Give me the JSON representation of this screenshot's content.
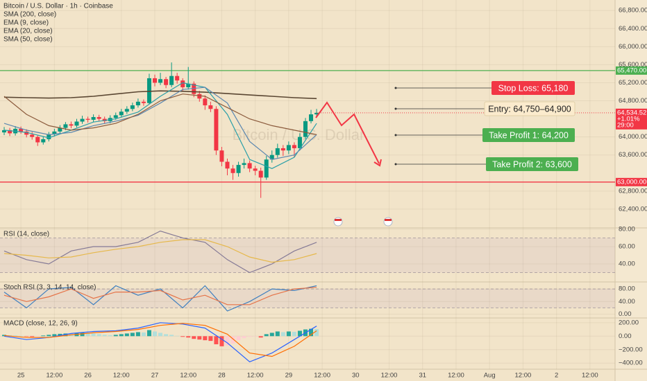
{
  "chart_data": [
    {
      "type": "candlestick",
      "title": "Bitcoin / U.S. Dollar · 1h · Coinbase",
      "watermark": "Bitcoin / U.S. Dollar",
      "x": [
        -6,
        -4,
        -2,
        0,
        2,
        4,
        6,
        8,
        10,
        12,
        14,
        16,
        18,
        20,
        22,
        24,
        26,
        28,
        30,
        32,
        34,
        36,
        38,
        40,
        42,
        44,
        46,
        48,
        50,
        52,
        54,
        56,
        58,
        60,
        62,
        64,
        66,
        68,
        70,
        72,
        74,
        76,
        78,
        80,
        82,
        84,
        86,
        88,
        90,
        92,
        94,
        96,
        98,
        100,
        102,
        104,
        106
      ],
      "open": [
        64100,
        64150,
        64080,
        64180,
        64120,
        64050,
        64000,
        63880,
        63950,
        64060,
        64120,
        64200,
        64280,
        64250,
        64340,
        64400,
        64380,
        64440,
        64400,
        64350,
        64420,
        64480,
        64560,
        64620,
        64700,
        64780,
        64750,
        65300,
        65200,
        65280,
        65150,
        65350,
        65250,
        65100,
        65180,
        64950,
        64850,
        64700,
        64620,
        63700,
        63450,
        63300,
        63200,
        63380,
        63420,
        63300,
        63250,
        63100,
        63500,
        63600,
        63750,
        63700,
        63820,
        63750,
        64000,
        64350,
        64500
      ],
      "high": [
        64220,
        64200,
        64240,
        64230,
        64170,
        64110,
        64040,
        64010,
        64110,
        64180,
        64260,
        64330,
        64340,
        64400,
        64470,
        64450,
        64500,
        64490,
        64450,
        64480,
        64540,
        64620,
        64680,
        64760,
        64850,
        64830,
        65400,
        65380,
        65420,
        65330,
        65650,
        65420,
        65300,
        65550,
        65230,
        65020,
        64920,
        64780,
        64680,
        63780,
        63520,
        63380,
        63450,
        63520,
        63480,
        63360,
        63320,
        63580,
        63700,
        63850,
        63820,
        63900,
        63880,
        64080,
        64420,
        64600,
        64620
      ],
      "low": [
        64040,
        64020,
        64030,
        64070,
        63990,
        63940,
        63800,
        63830,
        63900,
        64010,
        64080,
        64150,
        64190,
        64210,
        64290,
        64320,
        64330,
        64350,
        64290,
        64300,
        64380,
        64430,
        64510,
        64570,
        64650,
        64690,
        64720,
        65120,
        65150,
        65080,
        65100,
        65180,
        65020,
        65050,
        64880,
        64780,
        64600,
        64550,
        63600,
        63350,
        63150,
        63050,
        63120,
        63300,
        63220,
        63150,
        62650,
        63050,
        63430,
        63540,
        63580,
        63620,
        63550,
        63700,
        63950,
        64300,
        64450
      ],
      "close": [
        64150,
        64080,
        64180,
        64120,
        64050,
        64000,
        63880,
        63950,
        64060,
        64120,
        64200,
        64280,
        64250,
        64340,
        64400,
        64380,
        64440,
        64400,
        64350,
        64420,
        64480,
        64560,
        64620,
        64700,
        64780,
        64750,
        65300,
        65200,
        65280,
        65150,
        65350,
        65250,
        65100,
        65180,
        64950,
        64850,
        64700,
        64620,
        63700,
        63450,
        63300,
        63200,
        63380,
        63420,
        63300,
        63250,
        63100,
        63500,
        63600,
        63750,
        63700,
        63820,
        63750,
        64000,
        64350,
        64500,
        64534.52
      ],
      "up_color": "#089981",
      "down_color": "#f23645",
      "series": [
        {
          "name": "SMA (200, close)",
          "color": "#5a4632",
          "x": [
            -6,
            2,
            10,
            18,
            26,
            34,
            42,
            50,
            58,
            66,
            74,
            82,
            90,
            98,
            106
          ],
          "values": [
            64880,
            64870,
            64860,
            64870,
            64900,
            64950,
            65000,
            65020,
            65010,
            64990,
            64960,
            64930,
            64900,
            64870,
            64850
          ]
        },
        {
          "name": "EMA (9, close)",
          "color": "#2a9fa8",
          "x": [
            -6,
            2,
            10,
            18,
            26,
            34,
            42,
            50,
            58,
            66,
            74,
            82,
            90,
            98,
            106
          ],
          "values": [
            64150,
            64100,
            63980,
            64150,
            64330,
            64400,
            64550,
            64900,
            65200,
            65100,
            64500,
            63500,
            63300,
            63550,
            64300
          ]
        },
        {
          "name": "EMA (20, close)",
          "color": "#5b87b0",
          "x": [
            -6,
            2,
            10,
            18,
            26,
            34,
            42,
            50,
            58,
            66,
            74,
            82,
            90,
            98,
            106
          ],
          "values": [
            64300,
            64150,
            64050,
            64100,
            64250,
            64350,
            64480,
            64750,
            65050,
            65100,
            64750,
            63900,
            63500,
            63600,
            64050
          ]
        },
        {
          "name": "SMA (50, close)",
          "color": "#8b5a3c",
          "x": [
            -6,
            2,
            10,
            18,
            26,
            34,
            42,
            50,
            58,
            66,
            74,
            82,
            90,
            98,
            106
          ],
          "values": [
            64900,
            64500,
            64250,
            64150,
            64200,
            64300,
            64500,
            64800,
            64950,
            64900,
            64650,
            64400,
            64250,
            64150,
            64050
          ]
        }
      ],
      "xlim": [
        -7.5,
        213
      ],
      "ylim": [
        62000,
        67033
      ],
      "yticks": [
        {
          "value": 66800,
          "label": "66,800.00"
        },
        {
          "value": 66400,
          "label": "66,400.00"
        },
        {
          "value": 66000,
          "label": "66,000.00"
        },
        {
          "value": 65600,
          "label": "65,600.00"
        },
        {
          "value": 65200,
          "label": "65,200.00"
        },
        {
          "value": 64800,
          "label": "64,800.00"
        },
        {
          "value": 64000,
          "label": "64,000.00"
        },
        {
          "value": 63600,
          "label": "63,600.00"
        },
        {
          "value": 62800,
          "label": "62,800.00"
        },
        {
          "value": 62400,
          "label": "62,400.00"
        }
      ],
      "xticks": [
        {
          "value": 0,
          "label": "25"
        },
        {
          "value": 12,
          "label": "12:00"
        },
        {
          "value": 24,
          "label": "26"
        },
        {
          "value": 36,
          "label": "12:00"
        },
        {
          "value": 48,
          "label": "27"
        },
        {
          "value": 60,
          "label": "12:00"
        },
        {
          "value": 72,
          "label": "28"
        },
        {
          "value": 84,
          "label": "12:00"
        },
        {
          "value": 96,
          "label": "29"
        },
        {
          "value": 108,
          "label": "12:00"
        },
        {
          "value": 120,
          "label": "30"
        },
        {
          "value": 132,
          "label": "12:00"
        },
        {
          "value": 144,
          "label": "31"
        },
        {
          "value": 156,
          "label": "12:00"
        },
        {
          "value": 168,
          "label": "Aug"
        },
        {
          "value": 180,
          "label": "12:00"
        },
        {
          "value": 192,
          "label": "2"
        },
        {
          "value": 204,
          "label": "12:00"
        }
      ],
      "hlines": [
        {
          "value": 65470,
          "label": "65,470.00",
          "color": "#4caf50"
        },
        {
          "value": 63000,
          "label": "63,000.00",
          "color": "#f23645"
        }
      ],
      "last_price": {
        "value": 64534.52,
        "label": "64,534.52"
      },
      "change": "+1.01%",
      "countdown": "29:00",
      "annotations": [
        {
          "text": "Stop Loss: 65,180",
          "color": "#f23645",
          "text_color": "#ffffff"
        },
        {
          "text": "Entry: 64,750–64,900",
          "color": "#fbebcd",
          "text_color": "#222222"
        },
        {
          "text": "Take Profit 1: 64,200",
          "color": "#4caf50",
          "text_color": "#ffffff"
        },
        {
          "text": "Take Profit 2: 63,600",
          "color": "#4caf50",
          "text_color": "#ffffff"
        }
      ]
    },
    {
      "type": "line",
      "title": "RSI (14, close)",
      "ylim": [
        20,
        80
      ],
      "bands": [
        30,
        70
      ],
      "yticks": [
        {
          "value": 80,
          "label": "80.00"
        },
        {
          "value": 60,
          "label": "60.00"
        },
        {
          "value": 40,
          "label": "40.00"
        }
      ],
      "series": [
        {
          "name": "RSI",
          "color": "#857a96",
          "x": [
            -6,
            2,
            10,
            18,
            26,
            34,
            42,
            50,
            58,
            66,
            74,
            82,
            90,
            98,
            106
          ],
          "values": [
            55,
            45,
            40,
            55,
            60,
            60,
            65,
            78,
            70,
            65,
            45,
            30,
            40,
            55,
            65
          ]
        },
        {
          "name": "RSI-based MA",
          "color": "#e6b84a",
          "x": [
            -6,
            2,
            10,
            18,
            26,
            34,
            42,
            50,
            58,
            66,
            74,
            82,
            90,
            98,
            106
          ],
          "values": [
            52,
            50,
            47,
            48,
            53,
            57,
            60,
            65,
            68,
            68,
            60,
            48,
            42,
            45,
            52
          ]
        }
      ]
    },
    {
      "type": "line",
      "title": "Stoch RSI (3, 3, 14, 14, close)",
      "ylim": [
        -10,
        100
      ],
      "bands": [
        20,
        80
      ],
      "yticks": [
        {
          "value": 80,
          "label": "80.00"
        },
        {
          "value": 40,
          "label": "40.00"
        },
        {
          "value": 0,
          "label": "0.00"
        }
      ],
      "series": [
        {
          "name": "K",
          "color": "#3f7fbf",
          "x": [
            -6,
            2,
            10,
            18,
            26,
            34,
            42,
            50,
            58,
            66,
            74,
            82,
            90,
            98,
            106
          ],
          "values": [
            70,
            20,
            80,
            85,
            30,
            90,
            60,
            80,
            20,
            90,
            10,
            40,
            80,
            75,
            90
          ]
        },
        {
          "name": "D",
          "color": "#e57348",
          "x": [
            -6,
            2,
            10,
            18,
            26,
            34,
            42,
            50,
            58,
            66,
            74,
            82,
            90,
            98,
            106
          ],
          "values": [
            60,
            40,
            55,
            80,
            50,
            70,
            70,
            75,
            45,
            60,
            30,
            30,
            60,
            80,
            85
          ]
        }
      ]
    },
    {
      "type": "line",
      "title": "MACD (close, 12, 26, 9)",
      "ylim": [
        -480,
        260
      ],
      "yticks": [
        {
          "value": 200,
          "label": "200.00"
        },
        {
          "value": 0,
          "label": "0.00"
        },
        {
          "value": -200,
          "label": "−200.00"
        },
        {
          "value": -400,
          "label": "−400.00"
        }
      ],
      "histogram": {
        "x": [
          -6,
          -4,
          -2,
          0,
          2,
          4,
          6,
          8,
          10,
          12,
          14,
          16,
          18,
          20,
          22,
          24,
          26,
          28,
          30,
          32,
          34,
          36,
          38,
          40,
          42,
          44,
          46,
          48,
          50,
          52,
          54,
          56,
          58,
          60,
          62,
          64,
          66,
          68,
          70,
          72,
          74,
          76,
          78,
          80,
          82,
          84,
          86,
          88,
          90,
          92,
          94,
          96,
          98,
          100,
          102,
          104,
          106
        ],
        "values": [
          20,
          15,
          10,
          5,
          -5,
          -10,
          -5,
          10,
          20,
          30,
          35,
          40,
          35,
          45,
          50,
          45,
          40,
          30,
          20,
          15,
          20,
          30,
          40,
          50,
          60,
          55,
          90,
          70,
          50,
          30,
          20,
          5,
          -10,
          -20,
          -40,
          -50,
          -60,
          -70,
          -120,
          -150,
          -140,
          -110,
          -60,
          -30,
          -10,
          -5,
          -20,
          30,
          50,
          70,
          60,
          70,
          65,
          80,
          100,
          110,
          105
        ]
      },
      "series": [
        {
          "name": "MACD",
          "color": "#2962ff",
          "x": [
            -6,
            2,
            10,
            18,
            26,
            34,
            42,
            50,
            58,
            66,
            74,
            82,
            90,
            98,
            106
          ],
          "values": [
            0,
            -50,
            -20,
            40,
            70,
            80,
            120,
            200,
            180,
            120,
            -100,
            -380,
            -250,
            -50,
            150
          ]
        },
        {
          "name": "Signal",
          "color": "#ff6d00",
          "x": [
            -6,
            2,
            10,
            18,
            26,
            34,
            42,
            50,
            58,
            66,
            74,
            82,
            90,
            98,
            106
          ],
          "values": [
            10,
            -20,
            -20,
            20,
            50,
            70,
            100,
            160,
            190,
            160,
            30,
            -250,
            -300,
            -150,
            80
          ]
        }
      ]
    }
  ]
}
